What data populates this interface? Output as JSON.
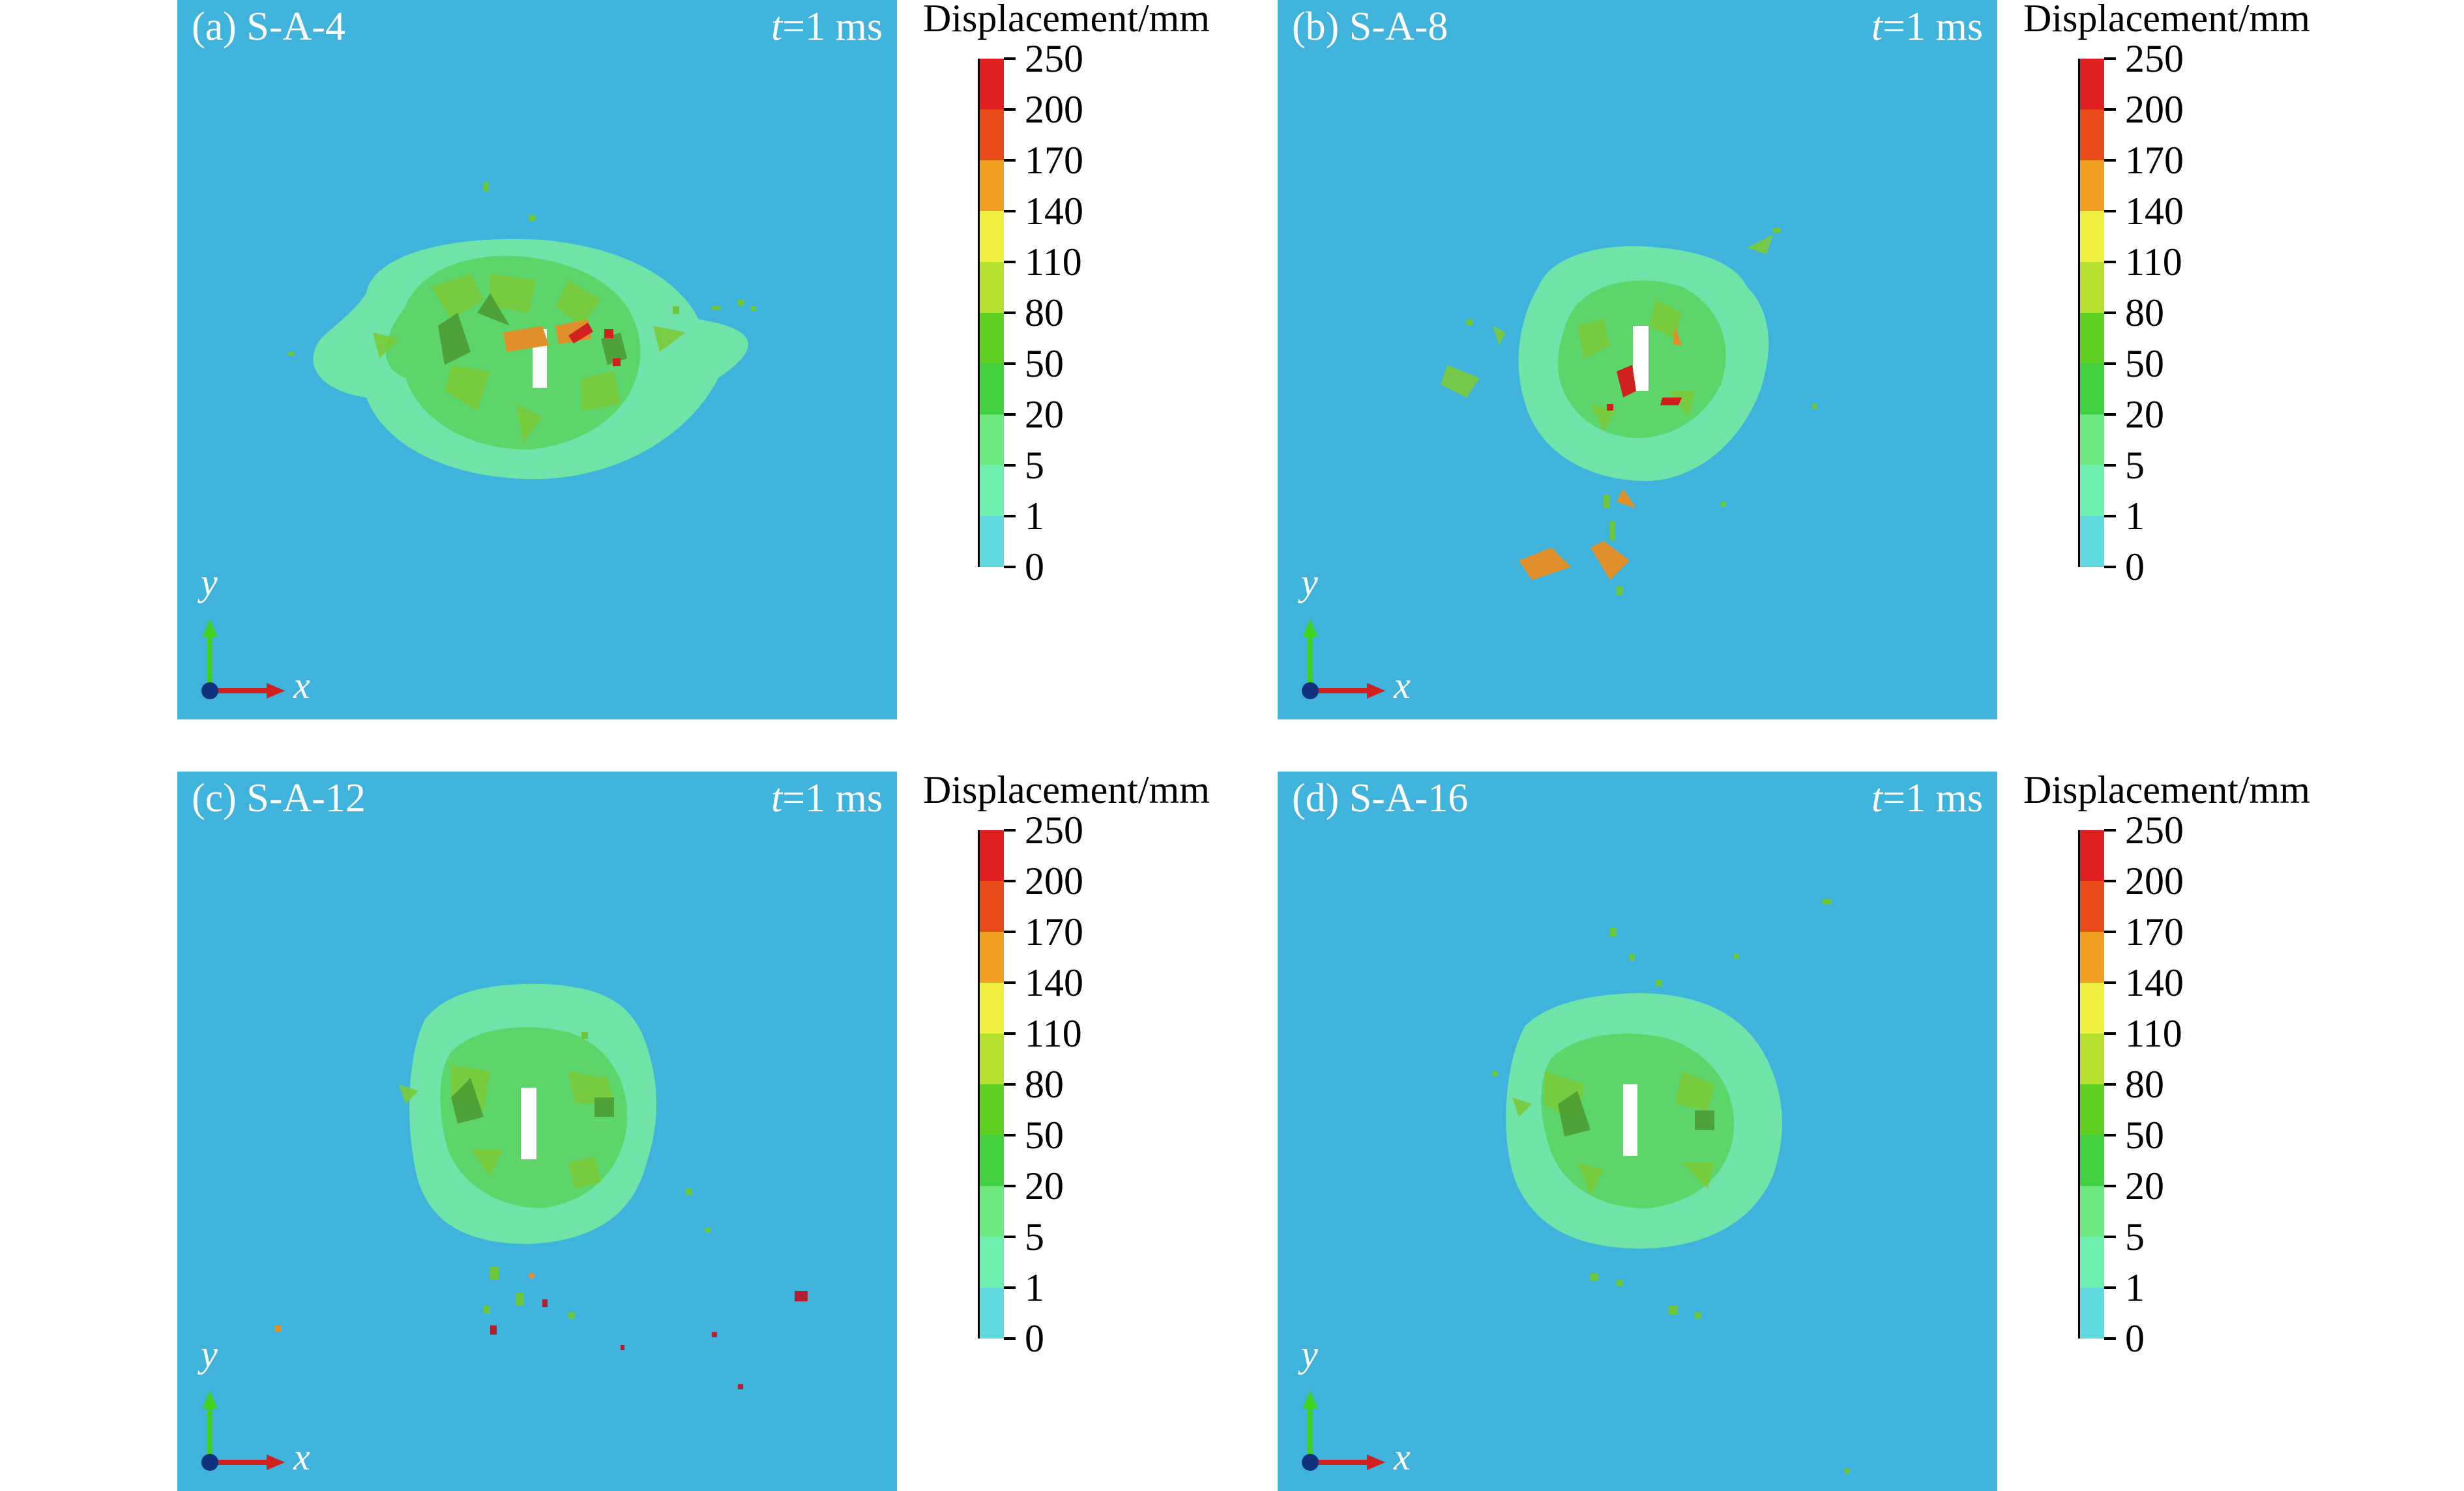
{
  "legend": {
    "title": "Displacement/mm",
    "levels": [
      "250",
      "200",
      "170",
      "140",
      "110",
      "80",
      "50",
      "20",
      "5",
      "1",
      "0"
    ],
    "band_colors": [
      "#e02020",
      "#e84a18",
      "#f0a020",
      "#f0f040",
      "#b8e030",
      "#60d020",
      "#40d040",
      "#6ee880",
      "#6ef0b0",
      "#60d8e0"
    ]
  },
  "panels": [
    {
      "tag": "(a) S-A-4",
      "time_var": "t",
      "time_rest": "=1 ms",
      "x_axis": "x",
      "y_axis": "y"
    },
    {
      "tag": "(b) S-A-8",
      "time_var": "t",
      "time_rest": "=1 ms",
      "x_axis": "x",
      "y_axis": "y"
    },
    {
      "tag": "(c) S-A-12",
      "time_var": "t",
      "time_rest": "=1 ms",
      "x_axis": "x",
      "y_axis": "y"
    },
    {
      "tag": "(d) S-A-16",
      "time_var": "t",
      "time_rest": "=1 ms",
      "x_axis": "x",
      "y_axis": "y"
    }
  ],
  "colors": {
    "background": "#3fb3dc",
    "crater_outer": "#6fe3a8",
    "crater_inner": "#5cd56a",
    "debris_green": "#6cc83a",
    "debris_orange": "#e0902a",
    "debris_red": "#d02020",
    "hole": "#ffffff"
  }
}
